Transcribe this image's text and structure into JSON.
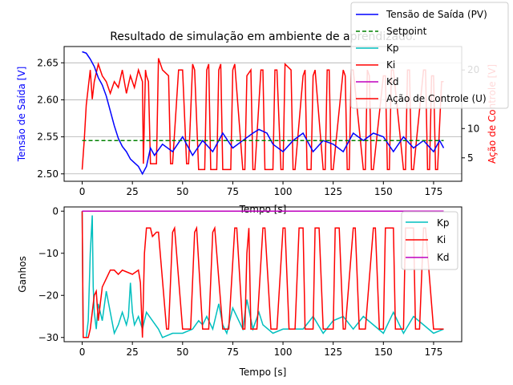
{
  "chart_data": [
    {
      "type": "line",
      "title": "Resultado de simulação em ambiente de aprendizado.",
      "xlabel": "Tempo [s]",
      "ylabel_left": "Tensão de Saída [V]",
      "ylabel_right": "Ação de Controle [V]",
      "xlim": [
        -9,
        189
      ],
      "ylim_left": [
        2.49,
        2.672
      ],
      "ylim_right": [
        1,
        24
      ],
      "x_ticks": [
        0,
        25,
        50,
        75,
        100,
        125,
        150,
        175
      ],
      "y_ticks_left": [
        2.5,
        2.55,
        2.6,
        2.65
      ],
      "y_ticks_right": [
        5,
        10,
        20
      ],
      "grid": "horizontal-left-axis",
      "legend_position": "top-right",
      "legend": [
        "Tensão de Saída (PV)",
        "Setpoint",
        "Kp",
        "Ki",
        "Kd",
        "Ação de Controle (U)"
      ],
      "colors": {
        "pv": "#0000ff",
        "setpoint": "#008000",
        "kp": "#00bfbf",
        "ki": "#ff0000",
        "kd": "#bf00bf",
        "control": "#ff0000"
      },
      "series": [
        {
          "name": "Tensão de Saída (PV)",
          "axis": "left",
          "x": [
            0,
            2,
            4,
            6,
            8,
            10,
            12,
            14,
            16,
            18,
            20,
            22,
            24,
            26,
            28,
            30,
            32,
            34,
            36,
            40,
            45,
            50,
            55,
            60,
            65,
            70,
            75,
            80,
            85,
            88,
            92,
            95,
            100,
            105,
            110,
            115,
            120,
            125,
            130,
            135,
            140,
            145,
            150,
            155,
            160,
            165,
            170,
            175,
            178,
            180
          ],
          "values": [
            2.665,
            2.663,
            2.655,
            2.645,
            2.63,
            2.62,
            2.605,
            2.585,
            2.565,
            2.548,
            2.537,
            2.53,
            2.52,
            2.515,
            2.51,
            2.5,
            2.51,
            2.535,
            2.525,
            2.54,
            2.53,
            2.55,
            2.525,
            2.545,
            2.53,
            2.555,
            2.535,
            2.545,
            2.555,
            2.56,
            2.555,
            2.54,
            2.53,
            2.545,
            2.555,
            2.53,
            2.545,
            2.54,
            2.53,
            2.555,
            2.545,
            2.555,
            2.55,
            2.53,
            2.55,
            2.535,
            2.545,
            2.53,
            2.545,
            2.535
          ]
        },
        {
          "name": "Setpoint",
          "axis": "left",
          "x": [
            0,
            180
          ],
          "values": [
            2.545,
            2.545
          ]
        },
        {
          "name": "Ação de Controle (U)",
          "axis": "right",
          "x": [
            0,
            1,
            2,
            4,
            5,
            6,
            8,
            10,
            12,
            14,
            16,
            18,
            20,
            22,
            24,
            26,
            28,
            30,
            30.5,
            31.5,
            32,
            33,
            34,
            37,
            38,
            39,
            40,
            43,
            44,
            45,
            48,
            50,
            52,
            53,
            55,
            56,
            58,
            61,
            62,
            63,
            64,
            67,
            68,
            69,
            70,
            74,
            75,
            76,
            80,
            81,
            82,
            84,
            85,
            86,
            89,
            90,
            91,
            95,
            96,
            97,
            99,
            100,
            101,
            104,
            105,
            106,
            110,
            111,
            112,
            114,
            115,
            116,
            120,
            121,
            122,
            123,
            124,
            125,
            130,
            131,
            132,
            133,
            134,
            135,
            140,
            141,
            142,
            143,
            144,
            145,
            150,
            151,
            152,
            153,
            154,
            155,
            160,
            161,
            162,
            163,
            164,
            165,
            170,
            171,
            172,
            173,
            174,
            175,
            176,
            177,
            179,
            180
          ],
          "values": [
            3,
            8,
            14,
            20,
            15,
            18,
            21,
            19,
            18,
            16,
            18,
            17,
            20,
            16,
            19,
            17,
            20,
            18,
            4,
            20,
            19,
            18,
            4,
            4,
            22,
            21,
            20,
            19,
            4,
            4,
            20,
            20,
            4,
            4,
            21,
            20,
            3,
            3,
            20,
            21,
            3,
            3,
            20,
            21,
            3,
            3,
            20,
            21,
            3,
            3,
            19,
            20,
            3,
            3,
            20,
            20,
            3,
            3,
            20,
            20,
            3,
            3,
            21,
            20,
            3,
            3,
            19,
            20,
            3,
            3,
            19,
            20,
            3,
            3,
            20,
            20,
            3,
            3,
            20,
            19,
            3,
            3,
            20,
            20,
            3,
            3,
            20,
            19,
            3,
            3,
            19,
            19,
            3,
            3,
            20,
            20,
            3,
            3,
            20,
            20,
            3,
            3,
            20,
            20,
            3,
            3,
            19,
            19,
            3,
            3,
            18,
            18
          ]
        }
      ]
    },
    {
      "type": "line",
      "title": "",
      "xlabel": "Tempo [s]",
      "ylabel": "Ganhos",
      "xlim": [
        -9,
        189
      ],
      "ylim": [
        -31,
        1
      ],
      "x_ticks": [
        0,
        25,
        50,
        75,
        100,
        125,
        150,
        175
      ],
      "y_ticks": [
        0,
        -10,
        -20,
        -30
      ],
      "grid": "off",
      "legend_position": "top-right",
      "legend": [
        "Kp",
        "Ki",
        "Kd"
      ],
      "series": [
        {
          "name": "Kp",
          "x": [
            0,
            0.5,
            1,
            2,
            3,
            4,
            5,
            5.5,
            6,
            7,
            8,
            10,
            12,
            14,
            16,
            18,
            20,
            22,
            23,
            24,
            25,
            26,
            28,
            30,
            32,
            35,
            38,
            40,
            45,
            50,
            55,
            58,
            60,
            62,
            65,
            68,
            70,
            72,
            75,
            78,
            80,
            82,
            85,
            88,
            90,
            95,
            100,
            105,
            110,
            115,
            120,
            125,
            130,
            135,
            140,
            145,
            150,
            155,
            160,
            165,
            170,
            175,
            180
          ],
          "values": [
            0,
            -30,
            -30,
            -30,
            -26,
            -10,
            -1,
            -18,
            -24,
            -28,
            -22,
            -26,
            -19,
            -24,
            -29,
            -27,
            -24,
            -27,
            -25,
            -17,
            -24,
            -27,
            -25,
            -28,
            -24,
            -26,
            -28,
            -30,
            -29,
            -29,
            -28,
            -26,
            -27,
            -25,
            -28,
            -22,
            -27,
            -29,
            -23,
            -26,
            -28,
            -21,
            -28,
            -24,
            -27,
            -29,
            -28,
            -28,
            -28,
            -25,
            -29,
            -26,
            -25,
            -28,
            -25,
            -27,
            -29,
            -24,
            -29,
            -25,
            -27,
            -29,
            -28
          ]
        },
        {
          "name": "Ki",
          "x": [
            0,
            0.5,
            1,
            3,
            4,
            5,
            6,
            7,
            8,
            10,
            12,
            14,
            16,
            18,
            20,
            25,
            28,
            29,
            30,
            31,
            32,
            34,
            35,
            37,
            38,
            42,
            43,
            45,
            46,
            50,
            52,
            54,
            56,
            57,
            60,
            61,
            63,
            65,
            66,
            70,
            71,
            73,
            76,
            77,
            80,
            81,
            82,
            83,
            84,
            85,
            87,
            90,
            91,
            94,
            95,
            97,
            100,
            101,
            103,
            105,
            106,
            108,
            110,
            111,
            115,
            116,
            118,
            120,
            121,
            125,
            126,
            128,
            130,
            131,
            135,
            136,
            138,
            140,
            141,
            145,
            146,
            148,
            150,
            151,
            155,
            156,
            158,
            160,
            161,
            165,
            166,
            168,
            170,
            171,
            175,
            176,
            178,
            180
          ],
          "values": [
            0,
            -30,
            -30,
            -30,
            -28,
            -24,
            -20,
            -19,
            -26,
            -18,
            -16,
            -14,
            -14,
            -15,
            -14,
            -15,
            -14,
            -17,
            -30,
            -10,
            -4,
            -4,
            -6,
            -5,
            -5,
            -28,
            -28,
            -5,
            -4,
            -28,
            -28,
            -28,
            -5,
            -4,
            -28,
            -28,
            -28,
            -5,
            -4,
            -28,
            -28,
            -28,
            -4,
            -4,
            -28,
            -28,
            -10,
            -4,
            -28,
            -28,
            -28,
            -4,
            -4,
            -28,
            -28,
            -28,
            -4,
            -4,
            -28,
            -28,
            -28,
            -4,
            -4,
            -28,
            -28,
            -4,
            -4,
            -28,
            -28,
            -28,
            -4,
            -4,
            -28,
            -28,
            -4,
            -4,
            -28,
            -28,
            -28,
            -4,
            -4,
            -28,
            -28,
            -4,
            -4,
            -28,
            -28,
            -28,
            -4,
            -4,
            -28,
            -28,
            -4,
            -4,
            -28,
            -28,
            -28,
            -28
          ]
        },
        {
          "name": "Kd",
          "x": [
            0,
            180
          ],
          "values": [
            0,
            0
          ]
        }
      ]
    }
  ]
}
